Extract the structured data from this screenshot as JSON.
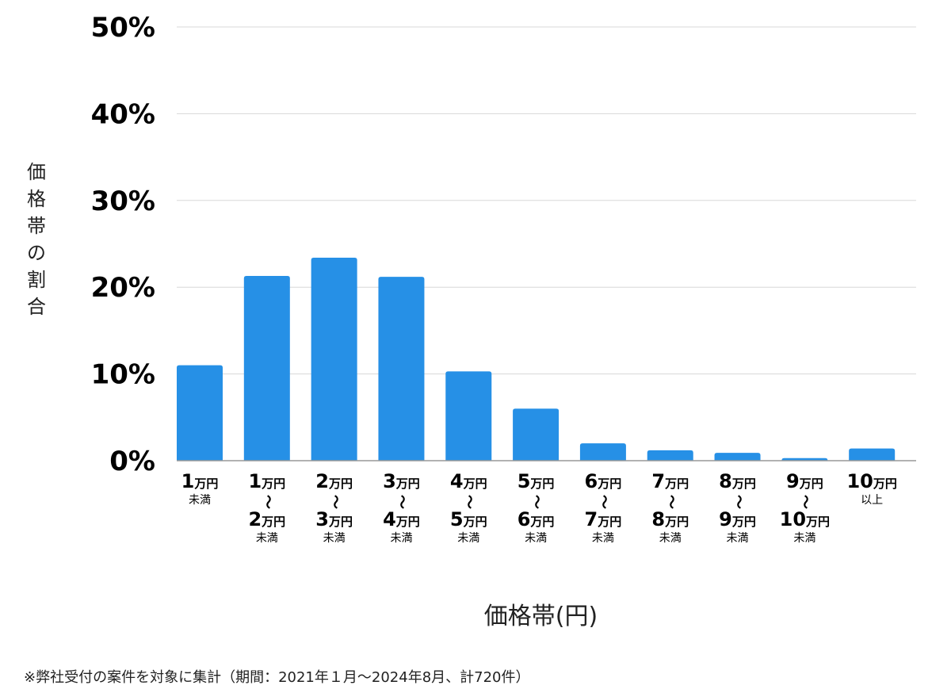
{
  "chart_data": {
    "type": "bar",
    "title": "",
    "xlabel": "価格帯(円)",
    "ylabel": "価格帯の割合",
    "ylim": [
      0,
      50
    ],
    "yticks": [
      "0%",
      "10%",
      "20%",
      "30%",
      "40%",
      "50%"
    ],
    "ytick_values": [
      0,
      10,
      20,
      30,
      40,
      50
    ],
    "grid": true,
    "bar_color": "#2690e6",
    "categories": [
      {
        "from": "1",
        "to": null,
        "unit": "万円",
        "sub": "未満"
      },
      {
        "from": "1",
        "to": "2",
        "unit": "万円",
        "sub": "未満"
      },
      {
        "from": "2",
        "to": "3",
        "unit": "万円",
        "sub": "未満"
      },
      {
        "from": "3",
        "to": "4",
        "unit": "万円",
        "sub": "未満"
      },
      {
        "from": "4",
        "to": "5",
        "unit": "万円",
        "sub": "未満"
      },
      {
        "from": "5",
        "to": "6",
        "unit": "万円",
        "sub": "未満"
      },
      {
        "from": "6",
        "to": "7",
        "unit": "万円",
        "sub": "未満"
      },
      {
        "from": "7",
        "to": "8",
        "unit": "万円",
        "sub": "未満"
      },
      {
        "from": "8",
        "to": "9",
        "unit": "万円",
        "sub": "未満"
      },
      {
        "from": "9",
        "to": "10",
        "unit": "万円",
        "sub": "未満"
      },
      {
        "from": "10",
        "to": null,
        "unit": "万円",
        "sub": "以上"
      }
    ],
    "tilde": "〜",
    "values": [
      11.0,
      21.3,
      23.4,
      21.2,
      10.3,
      6.0,
      2.0,
      1.2,
      0.9,
      0.3,
      1.4
    ]
  },
  "note": "※弊社受付の案件を対象に集計（期間：2021年１月〜2024年8月、計720件）"
}
